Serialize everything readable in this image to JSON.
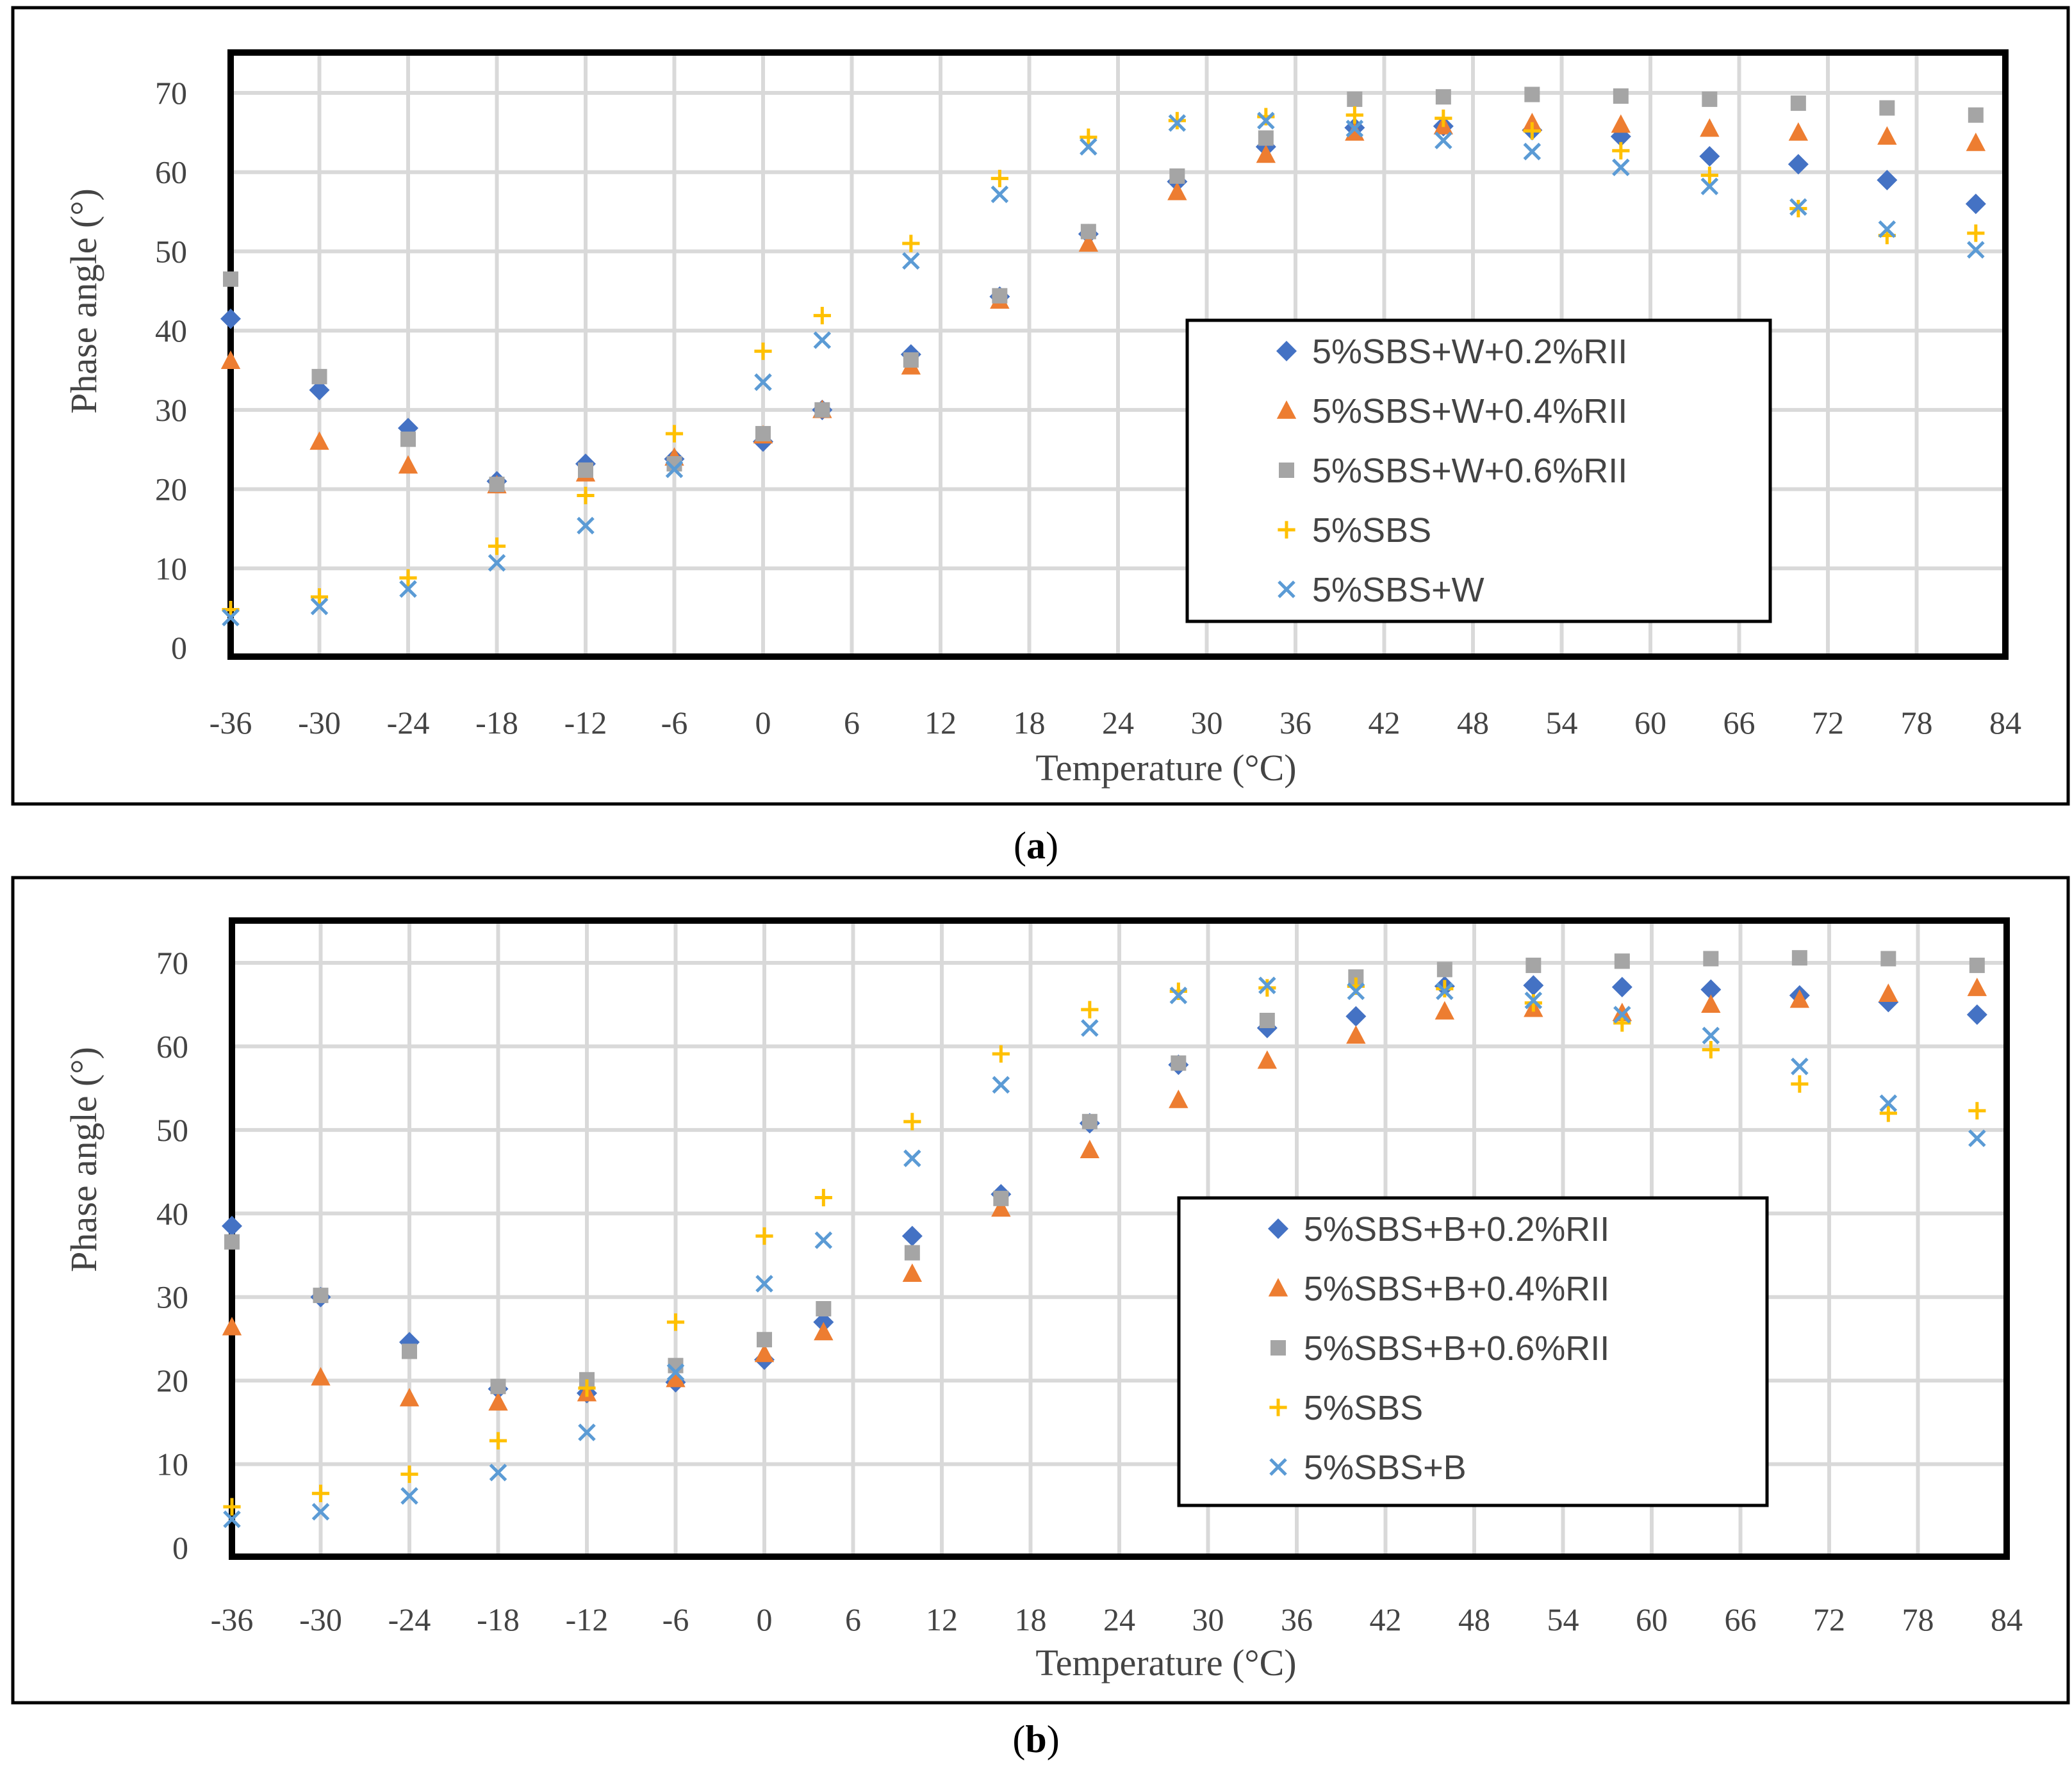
{
  "chart_data": [
    {
      "type": "scatter",
      "caption_letter": "a",
      "xlabel": "Temperature (°C)",
      "ylabel": "Phase angle (°)",
      "xlim": [
        -36,
        84
      ],
      "ylim": [
        0,
        75
      ],
      "xticks": [
        -36,
        -30,
        -24,
        -18,
        -12,
        -6,
        0,
        6,
        12,
        18,
        24,
        30,
        36,
        42,
        48,
        54,
        60,
        66,
        72,
        78,
        84
      ],
      "yticks": [
        0,
        10,
        20,
        30,
        40,
        50,
        60,
        70
      ],
      "grid": true,
      "legend_position": "center-right",
      "series": [
        {
          "name": "5%SBS+W+0.2%RII",
          "marker": "diamond",
          "color": "#4472C4",
          "x": [
            -36,
            -30,
            -24,
            -18,
            -12,
            -6,
            0,
            4,
            10,
            16,
            22,
            28,
            34,
            40,
            46,
            52,
            58,
            64,
            70,
            76,
            82
          ],
          "y": [
            41.5,
            32.5,
            27.7,
            21.0,
            23.2,
            23.8,
            26.0,
            30.0,
            37.0,
            44.3,
            52.2,
            58.8,
            63.2,
            65.6,
            65.8,
            65.3,
            64.5,
            62.0,
            61.0,
            59.0,
            56.0
          ]
        },
        {
          "name": "5%SBS+W+0.4%RII",
          "marker": "triangle",
          "color": "#ED7D31",
          "x": [
            -36,
            -30,
            -24,
            -18,
            -12,
            -6,
            0,
            4,
            10,
            16,
            22,
            28,
            34,
            40,
            46,
            52,
            58,
            64,
            70,
            76,
            82
          ],
          "y": [
            36.2,
            26.0,
            23.0,
            20.5,
            22.0,
            24.0,
            26.8,
            30.0,
            35.5,
            43.8,
            51.0,
            57.5,
            62.2,
            65.0,
            65.8,
            66.2,
            66.0,
            65.5,
            65.0,
            64.5,
            63.7
          ]
        },
        {
          "name": "5%SBS+W+0.6%RII",
          "marker": "square",
          "color": "#A5A5A5",
          "x": [
            -36,
            -30,
            -24,
            -18,
            -12,
            -6,
            0,
            4,
            10,
            16,
            22,
            28,
            34,
            40,
            46,
            52,
            58,
            64,
            70,
            76,
            82
          ],
          "y": [
            46.5,
            34.2,
            26.3,
            20.6,
            22.4,
            23.2,
            27.0,
            30.0,
            36.3,
            44.4,
            52.5,
            59.5,
            64.3,
            69.2,
            69.5,
            69.8,
            69.6,
            69.2,
            68.7,
            68.1,
            67.2
          ]
        },
        {
          "name": "5%SBS",
          "marker": "plus",
          "color": "#FFC000",
          "x": [
            -36,
            -30,
            -24,
            -18,
            -12,
            -6,
            0,
            4,
            10,
            16,
            22,
            28,
            34,
            40,
            46,
            52,
            58,
            64,
            70,
            76,
            82
          ],
          "y": [
            4.8,
            6.4,
            8.8,
            12.8,
            19.2,
            27.0,
            37.4,
            41.9,
            51.0,
            59.2,
            64.4,
            66.5,
            67.0,
            67.2,
            66.8,
            65.2,
            62.7,
            59.6,
            55.4,
            52.0,
            52.3
          ]
        },
        {
          "name": "5%SBS+W",
          "marker": "x",
          "color": "#5B9BD5",
          "x": [
            -36,
            -30,
            -24,
            -18,
            -12,
            -6,
            0,
            4,
            10,
            16,
            22,
            28,
            34,
            40,
            46,
            52,
            58,
            64,
            70,
            76,
            82
          ],
          "y": [
            3.8,
            5.2,
            7.4,
            10.7,
            15.4,
            22.5,
            33.5,
            38.8,
            48.8,
            57.2,
            63.2,
            66.2,
            66.5,
            65.5,
            64.0,
            62.6,
            60.6,
            58.2,
            55.6,
            52.8,
            50.2
          ]
        }
      ]
    },
    {
      "type": "scatter",
      "caption_letter": "b",
      "xlabel": "Temperature (°C)",
      "ylabel": "Phase angle (°)",
      "xlim": [
        -36,
        84
      ],
      "ylim": [
        0,
        75
      ],
      "xticks": [
        -36,
        -30,
        -24,
        -18,
        -12,
        -6,
        0,
        6,
        12,
        18,
        24,
        30,
        36,
        42,
        48,
        54,
        60,
        66,
        72,
        78,
        84
      ],
      "yticks": [
        0,
        10,
        20,
        30,
        40,
        50,
        60,
        70
      ],
      "grid": true,
      "legend_position": "center-right",
      "series": [
        {
          "name": "5%SBS+B+0.2%RII",
          "marker": "diamond",
          "color": "#4472C4",
          "x": [
            -36,
            -30,
            -24,
            -18,
            -12,
            -6,
            0,
            4,
            10,
            16,
            22,
            28,
            34,
            40,
            46,
            52,
            58,
            64,
            70,
            76,
            82
          ],
          "y": [
            38.5,
            30.0,
            24.6,
            19.0,
            18.5,
            19.8,
            22.5,
            27.0,
            37.3,
            42.3,
            50.8,
            57.8,
            62.2,
            63.6,
            67.2,
            67.3,
            67.1,
            66.8,
            66.1,
            65.3,
            63.8
          ]
        },
        {
          "name": "5%SBS+B+0.4%RII",
          "marker": "triangle",
          "color": "#ED7D31",
          "x": [
            -36,
            -30,
            -24,
            -18,
            -12,
            -6,
            0,
            4,
            10,
            16,
            22,
            28,
            34,
            40,
            46,
            52,
            58,
            64,
            70,
            76,
            82
          ],
          "y": [
            26.4,
            20.4,
            17.9,
            17.4,
            18.5,
            20.2,
            23.2,
            25.8,
            32.8,
            40.6,
            47.6,
            53.6,
            58.3,
            61.3,
            64.2,
            64.5,
            64.0,
            65.0,
            65.6,
            66.3,
            67.0
          ]
        },
        {
          "name": "5%SBS+B+0.6%RII",
          "marker": "square",
          "color": "#A5A5A5",
          "x": [
            -36,
            -30,
            -24,
            -18,
            -12,
            -6,
            0,
            4,
            10,
            16,
            22,
            28,
            34,
            40,
            46,
            52,
            58,
            64,
            70,
            76,
            82
          ],
          "y": [
            36.6,
            30.2,
            23.5,
            19.3,
            20.1,
            21.8,
            24.9,
            28.6,
            35.3,
            41.8,
            51.0,
            58.0,
            63.1,
            68.3,
            69.2,
            69.7,
            70.2,
            70.5,
            70.6,
            70.5,
            69.7
          ]
        },
        {
          "name": "5%SBS",
          "marker": "plus",
          "color": "#FFC000",
          "x": [
            -36,
            -30,
            -24,
            -18,
            -12,
            -6,
            0,
            4,
            10,
            16,
            22,
            28,
            34,
            40,
            46,
            52,
            58,
            64,
            70,
            76,
            82
          ],
          "y": [
            4.9,
            6.5,
            8.8,
            12.8,
            19.1,
            27.0,
            37.3,
            41.9,
            51.0,
            59.1,
            64.4,
            66.6,
            67.0,
            67.2,
            66.9,
            65.2,
            62.8,
            59.6,
            55.5,
            52.0,
            52.3
          ]
        },
        {
          "name": "5%SBS+B",
          "marker": "x",
          "color": "#5B9BD5",
          "x": [
            -36,
            -30,
            -24,
            -18,
            -12,
            -6,
            0,
            4,
            10,
            16,
            22,
            28,
            34,
            40,
            46,
            52,
            58,
            64,
            70,
            76,
            82
          ],
          "y": [
            3.4,
            4.3,
            6.2,
            9.0,
            13.8,
            21.0,
            31.6,
            36.8,
            46.6,
            55.4,
            62.2,
            66.1,
            67.3,
            66.6,
            66.6,
            65.5,
            63.8,
            61.3,
            57.6,
            53.2,
            49.0
          ]
        }
      ]
    }
  ]
}
